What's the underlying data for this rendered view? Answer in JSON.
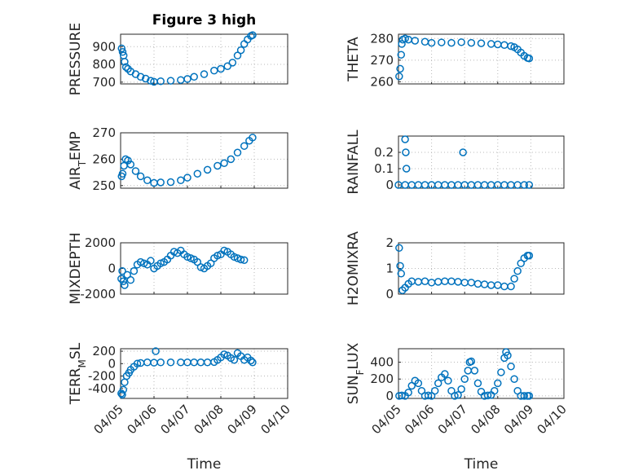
{
  "chart_data": [
    {
      "type": "scatter",
      "title": "Figure 3 high",
      "ylabel": "PRESSURE",
      "ylabel_parts": [
        {
          "t": "PRESSURE"
        }
      ],
      "ylim": [
        690,
        970
      ],
      "yticks": [
        700,
        800,
        900
      ],
      "ytick_labels": [
        "700",
        "800",
        "900"
      ],
      "xlim": [
        0,
        5
      ],
      "xticks": [
        0,
        1,
        2,
        3,
        4,
        5
      ],
      "points": [
        [
          0.03,
          890
        ],
        [
          0.06,
          870
        ],
        [
          0.09,
          850
        ],
        [
          0.12,
          815
        ],
        [
          0.16,
          785
        ],
        [
          0.22,
          775
        ],
        [
          0.3,
          760
        ],
        [
          0.45,
          745
        ],
        [
          0.6,
          730
        ],
        [
          0.75,
          720
        ],
        [
          0.9,
          708
        ],
        [
          1.0,
          702
        ],
        [
          1.2,
          705
        ],
        [
          1.5,
          708
        ],
        [
          1.8,
          712
        ],
        [
          2.0,
          718
        ],
        [
          2.2,
          730
        ],
        [
          2.5,
          745
        ],
        [
          2.8,
          765
        ],
        [
          3.0,
          775
        ],
        [
          3.2,
          790
        ],
        [
          3.35,
          810
        ],
        [
          3.5,
          850
        ],
        [
          3.6,
          880
        ],
        [
          3.7,
          915
        ],
        [
          3.8,
          940
        ],
        [
          3.9,
          960
        ],
        [
          3.95,
          965
        ]
      ]
    },
    {
      "type": "scatter",
      "ylabel": "THETA",
      "ylabel_parts": [
        {
          "t": "THETA"
        }
      ],
      "ylim": [
        259,
        282
      ],
      "yticks": [
        260,
        270,
        280
      ],
      "ytick_labels": [
        "260",
        "270",
        "280"
      ],
      "xlim": [
        0,
        5
      ],
      "xticks": [
        0,
        1,
        2,
        3,
        4,
        5
      ],
      "points": [
        [
          0.02,
          262.5
        ],
        [
          0.05,
          266
        ],
        [
          0.08,
          272.5
        ],
        [
          0.1,
          277.5
        ],
        [
          0.13,
          279.5
        ],
        [
          0.2,
          280
        ],
        [
          0.3,
          279.5
        ],
        [
          0.5,
          279
        ],
        [
          0.8,
          278.5
        ],
        [
          1.0,
          278
        ],
        [
          1.3,
          278.2
        ],
        [
          1.6,
          278
        ],
        [
          1.9,
          278.3
        ],
        [
          2.2,
          278
        ],
        [
          2.5,
          277.8
        ],
        [
          2.8,
          277.5
        ],
        [
          3.0,
          277.3
        ],
        [
          3.2,
          277
        ],
        [
          3.4,
          276.5
        ],
        [
          3.5,
          276
        ],
        [
          3.6,
          275
        ],
        [
          3.7,
          273.5
        ],
        [
          3.8,
          272
        ],
        [
          3.9,
          271
        ],
        [
          3.95,
          270.8
        ]
      ]
    },
    {
      "type": "scatter",
      "ylabel": "AIR_TEMP",
      "ylabel_parts": [
        {
          "t": "AIR"
        },
        {
          "t": "T",
          "sub": true
        },
        {
          "t": "EMP"
        }
      ],
      "ylim": [
        249,
        270
      ],
      "yticks": [
        250,
        260,
        270
      ],
      "ytick_labels": [
        "250",
        "260",
        "270"
      ],
      "xlim": [
        0,
        5
      ],
      "xticks": [
        0,
        1,
        2,
        3,
        4,
        5
      ],
      "points": [
        [
          0.03,
          253.5
        ],
        [
          0.06,
          254.5
        ],
        [
          0.1,
          257.5
        ],
        [
          0.15,
          260
        ],
        [
          0.22,
          259.5
        ],
        [
          0.3,
          258
        ],
        [
          0.45,
          255.5
        ],
        [
          0.6,
          253.5
        ],
        [
          0.8,
          252
        ],
        [
          1.0,
          251
        ],
        [
          1.2,
          251.2
        ],
        [
          1.5,
          251.3
        ],
        [
          1.8,
          252
        ],
        [
          2.0,
          253
        ],
        [
          2.3,
          254.5
        ],
        [
          2.6,
          256
        ],
        [
          2.9,
          257.5
        ],
        [
          3.1,
          258.5
        ],
        [
          3.3,
          260
        ],
        [
          3.5,
          262.5
        ],
        [
          3.7,
          265
        ],
        [
          3.85,
          267
        ],
        [
          3.95,
          268.2
        ]
      ]
    },
    {
      "type": "scatter",
      "ylabel": "RAINFALL",
      "ylabel_parts": [
        {
          "t": "RAINFALL"
        }
      ],
      "ylim": [
        -0.02,
        0.3
      ],
      "yticks": [
        0,
        0.1,
        0.2
      ],
      "ytick_labels": [
        "0",
        "0.1",
        "0.2"
      ],
      "xlim": [
        0,
        5
      ],
      "xticks": [
        0,
        1,
        2,
        3,
        4,
        5
      ],
      "points": [
        [
          0.2,
          0.28
        ],
        [
          0.22,
          0.2
        ],
        [
          0.24,
          0.1
        ],
        [
          1.95,
          0.2
        ],
        [
          0.0,
          0
        ],
        [
          0.2,
          0
        ],
        [
          0.4,
          0
        ],
        [
          0.6,
          0
        ],
        [
          0.8,
          0
        ],
        [
          1.0,
          0
        ],
        [
          1.2,
          0
        ],
        [
          1.4,
          0
        ],
        [
          1.6,
          0
        ],
        [
          1.8,
          0
        ],
        [
          2.0,
          0
        ],
        [
          2.2,
          0
        ],
        [
          2.4,
          0
        ],
        [
          2.6,
          0
        ],
        [
          2.8,
          0
        ],
        [
          3.0,
          0
        ],
        [
          3.2,
          0
        ],
        [
          3.4,
          0
        ],
        [
          3.6,
          0
        ],
        [
          3.8,
          0
        ],
        [
          3.95,
          0
        ]
      ]
    },
    {
      "type": "scatter",
      "ylabel": "MIXDEPTH",
      "ylabel_parts": [
        {
          "t": "MIXDEPTH"
        }
      ],
      "ylim": [
        -2000,
        2000
      ],
      "yticks": [
        -2000,
        0,
        2000
      ],
      "ytick_labels": [
        "-2000",
        "0",
        "2000"
      ],
      "xlim": [
        0,
        5
      ],
      "xticks": [
        0,
        1,
        2,
        3,
        4,
        5
      ],
      "points": [
        [
          0.02,
          -800
        ],
        [
          0.05,
          -200
        ],
        [
          0.08,
          -1000
        ],
        [
          0.12,
          -1300
        ],
        [
          0.2,
          -500
        ],
        [
          0.3,
          -900
        ],
        [
          0.4,
          -200
        ],
        [
          0.5,
          300
        ],
        [
          0.6,
          500
        ],
        [
          0.7,
          400
        ],
        [
          0.8,
          300
        ],
        [
          0.9,
          600
        ],
        [
          1.0,
          0
        ],
        [
          1.1,
          200
        ],
        [
          1.2,
          400
        ],
        [
          1.3,
          500
        ],
        [
          1.4,
          700
        ],
        [
          1.5,
          1000
        ],
        [
          1.6,
          1300
        ],
        [
          1.7,
          1200
        ],
        [
          1.8,
          1400
        ],
        [
          1.9,
          1100
        ],
        [
          2.0,
          900
        ],
        [
          2.1,
          800
        ],
        [
          2.2,
          700
        ],
        [
          2.3,
          500
        ],
        [
          2.4,
          100
        ],
        [
          2.5,
          0
        ],
        [
          2.6,
          200
        ],
        [
          2.7,
          400
        ],
        [
          2.8,
          800
        ],
        [
          2.9,
          1000
        ],
        [
          3.0,
          1100
        ],
        [
          3.1,
          1400
        ],
        [
          3.2,
          1300
        ],
        [
          3.3,
          1100
        ],
        [
          3.4,
          900
        ],
        [
          3.5,
          800
        ],
        [
          3.6,
          700
        ],
        [
          3.7,
          650
        ]
      ]
    },
    {
      "type": "scatter",
      "ylabel": "H2OMIXRA",
      "ylabel_parts": [
        {
          "t": "H2OMIXRA"
        }
      ],
      "ylim": [
        0,
        2
      ],
      "yticks": [
        0,
        1,
        2
      ],
      "ytick_labels": [
        "0",
        "1",
        "2"
      ],
      "xlim": [
        0,
        5
      ],
      "xticks": [
        0,
        1,
        2,
        3,
        4,
        5
      ],
      "points": [
        [
          0.02,
          1.8
        ],
        [
          0.05,
          1.1
        ],
        [
          0.08,
          0.8
        ],
        [
          0.12,
          0.15
        ],
        [
          0.2,
          0.25
        ],
        [
          0.3,
          0.4
        ],
        [
          0.4,
          0.5
        ],
        [
          0.6,
          0.48
        ],
        [
          0.8,
          0.5
        ],
        [
          1.0,
          0.45
        ],
        [
          1.2,
          0.48
        ],
        [
          1.4,
          0.5
        ],
        [
          1.6,
          0.5
        ],
        [
          1.8,
          0.48
        ],
        [
          2.0,
          0.45
        ],
        [
          2.2,
          0.45
        ],
        [
          2.4,
          0.4
        ],
        [
          2.6,
          0.38
        ],
        [
          2.8,
          0.35
        ],
        [
          3.0,
          0.35
        ],
        [
          3.2,
          0.3
        ],
        [
          3.4,
          0.3
        ],
        [
          3.5,
          0.6
        ],
        [
          3.6,
          0.9
        ],
        [
          3.7,
          1.2
        ],
        [
          3.8,
          1.4
        ],
        [
          3.9,
          1.5
        ],
        [
          3.95,
          1.5
        ]
      ]
    },
    {
      "type": "scatter",
      "ylabel": "TERR_MSL",
      "ylabel_parts": [
        {
          "t": "TERR"
        },
        {
          "t": "M",
          "sub": true
        },
        {
          "t": "SL"
        }
      ],
      "ylim": [
        -560,
        240
      ],
      "yticks": [
        -400,
        -200,
        0,
        200
      ],
      "ytick_labels": [
        "-400",
        "-200",
        "0",
        "200"
      ],
      "xlim": [
        0,
        5
      ],
      "xticks": [
        0,
        1,
        2,
        3,
        4,
        5
      ],
      "xtick_labels": [
        "04/05",
        "04/06",
        "04/07",
        "04/08",
        "04/09",
        "04/10"
      ],
      "xlabel": "Time",
      "points": [
        [
          0.02,
          -480
        ],
        [
          0.05,
          -500
        ],
        [
          0.08,
          -420
        ],
        [
          0.12,
          -300
        ],
        [
          0.18,
          -200
        ],
        [
          0.25,
          -150
        ],
        [
          0.3,
          -100
        ],
        [
          0.4,
          -50
        ],
        [
          0.5,
          0
        ],
        [
          0.6,
          10
        ],
        [
          0.8,
          20
        ],
        [
          1.0,
          15
        ],
        [
          1.05,
          200
        ],
        [
          1.2,
          20
        ],
        [
          1.5,
          20
        ],
        [
          1.8,
          20
        ],
        [
          2.0,
          20
        ],
        [
          2.2,
          20
        ],
        [
          2.4,
          20
        ],
        [
          2.6,
          20
        ],
        [
          2.8,
          25
        ],
        [
          2.9,
          60
        ],
        [
          3.0,
          100
        ],
        [
          3.1,
          150
        ],
        [
          3.2,
          130
        ],
        [
          3.3,
          90
        ],
        [
          3.4,
          60
        ],
        [
          3.5,
          170
        ],
        [
          3.6,
          120
        ],
        [
          3.7,
          60
        ],
        [
          3.8,
          100
        ],
        [
          3.9,
          50
        ],
        [
          3.95,
          20
        ]
      ]
    },
    {
      "type": "scatter",
      "ylabel": "SUN_FLUX",
      "ylabel_parts": [
        {
          "t": "SUN"
        },
        {
          "t": "F",
          "sub": true
        },
        {
          "t": "LUX"
        }
      ],
      "ylim": [
        -30,
        560
      ],
      "yticks": [
        0,
        200,
        400
      ],
      "ytick_labels": [
        "0",
        "200",
        "400"
      ],
      "xlim": [
        0,
        5
      ],
      "xticks": [
        0,
        1,
        2,
        3,
        4,
        5
      ],
      "xtick_labels": [
        "04/05",
        "04/06",
        "04/07",
        "04/08",
        "04/09",
        "04/10"
      ],
      "xlabel": "Time",
      "points": [
        [
          0.02,
          0
        ],
        [
          0.1,
          5
        ],
        [
          0.2,
          0
        ],
        [
          0.3,
          40
        ],
        [
          0.4,
          120
        ],
        [
          0.5,
          180
        ],
        [
          0.6,
          150
        ],
        [
          0.7,
          60
        ],
        [
          0.8,
          0
        ],
        [
          0.9,
          5
        ],
        [
          1.0,
          0
        ],
        [
          1.1,
          60
        ],
        [
          1.2,
          150
        ],
        [
          1.3,
          220
        ],
        [
          1.4,
          260
        ],
        [
          1.5,
          180
        ],
        [
          1.6,
          60
        ],
        [
          1.7,
          0
        ],
        [
          1.8,
          10
        ],
        [
          1.9,
          80
        ],
        [
          2.0,
          200
        ],
        [
          2.1,
          300
        ],
        [
          2.15,
          400
        ],
        [
          2.2,
          410
        ],
        [
          2.3,
          300
        ],
        [
          2.4,
          150
        ],
        [
          2.5,
          50
        ],
        [
          2.6,
          0
        ],
        [
          2.7,
          5
        ],
        [
          2.8,
          10
        ],
        [
          2.9,
          60
        ],
        [
          3.0,
          150
        ],
        [
          3.1,
          280
        ],
        [
          3.2,
          450
        ],
        [
          3.25,
          520
        ],
        [
          3.3,
          480
        ],
        [
          3.4,
          350
        ],
        [
          3.5,
          200
        ],
        [
          3.6,
          60
        ],
        [
          3.7,
          0
        ],
        [
          3.8,
          0
        ],
        [
          3.9,
          0
        ],
        [
          3.95,
          0
        ]
      ]
    }
  ]
}
